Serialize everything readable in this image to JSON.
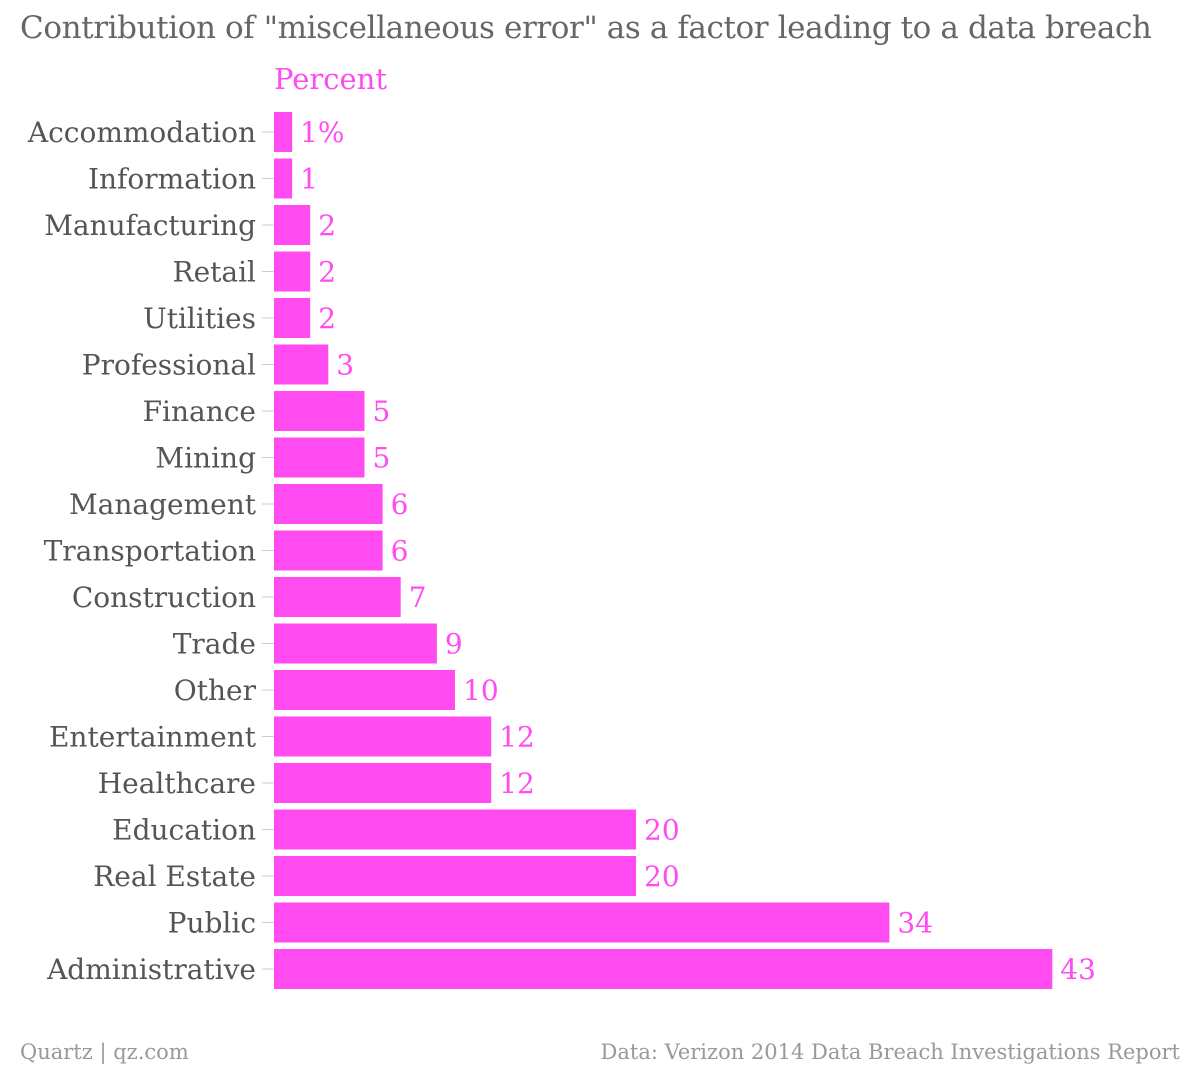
{
  "chart_data": {
    "type": "bar",
    "orientation": "horizontal",
    "title": "Contribution of \"miscellaneous error\" as a factor leading to a data breach",
    "unit_label": "Percent",
    "categories": [
      "Accommodation",
      "Information",
      "Manufacturing",
      "Retail",
      "Utilities",
      "Professional",
      "Finance",
      "Mining",
      "Management",
      "Transportation",
      "Construction",
      "Trade",
      "Other",
      "Entertainment",
      "Healthcare",
      "Education",
      "Real Estate",
      "Public",
      "Administrative"
    ],
    "values": [
      1,
      1,
      2,
      2,
      2,
      3,
      5,
      5,
      6,
      6,
      7,
      9,
      10,
      12,
      12,
      20,
      20,
      34,
      43
    ],
    "value_labels": [
      "1%",
      "1",
      "2",
      "2",
      "2",
      "3",
      "5",
      "5",
      "6",
      "6",
      "7",
      "9",
      "10",
      "12",
      "12",
      "20",
      "20",
      "34",
      "43"
    ],
    "xlim": [
      0,
      43
    ],
    "grid": false,
    "legend": "none",
    "bar_color": "#ff4bf0"
  },
  "footer": {
    "source_left": "Quartz | qz.com",
    "source_right": "Data: Verizon 2014 Data Breach Investigations Report"
  }
}
